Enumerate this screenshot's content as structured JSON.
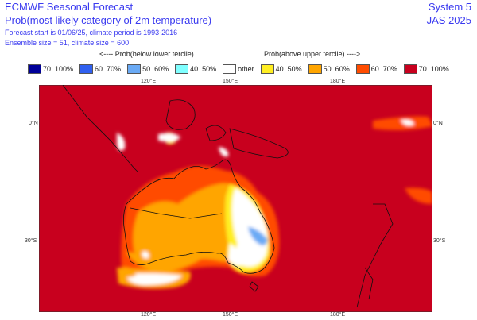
{
  "header": {
    "title": "ECMWF Seasonal Forecast",
    "subtitle": "Prob(most likely category of 2m temperature)",
    "info_line1": "Forecast start is 01/06/25, climate period is 1993-2016",
    "info_line2": "Ensemble size = 51, climate size = 600",
    "system": "System 5",
    "period": "JAS 2025"
  },
  "legend": {
    "below_label": "<---- Prob(below lower tercile)",
    "above_label": "Prob(above upper tercile) ---->",
    "items": [
      {
        "label": "70..100%",
        "color": "#000099"
      },
      {
        "label": "60..70%",
        "color": "#3060f0"
      },
      {
        "label": "50..60%",
        "color": "#6aaaf5"
      },
      {
        "label": "40..50%",
        "color": "#80ffff"
      },
      {
        "label": "other",
        "color": "#ffffff"
      },
      {
        "label": "40..50%",
        "color": "#ffee22"
      },
      {
        "label": "50..60%",
        "color": "#ffa500"
      },
      {
        "label": "60..70%",
        "color": "#ff4c00"
      },
      {
        "label": "70..100%",
        "color": "#c8001e"
      }
    ]
  },
  "axes": {
    "lon_labels": [
      "120°E",
      "150°E",
      "180°E"
    ],
    "lat_labels": [
      "0°N",
      "30°S"
    ]
  }
}
